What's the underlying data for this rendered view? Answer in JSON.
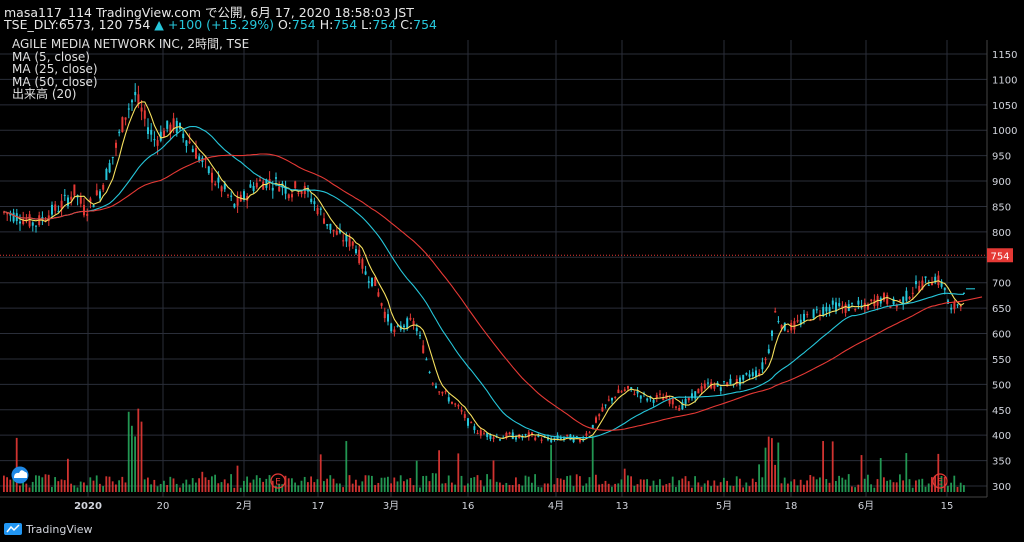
{
  "header": {
    "line1": "masa117_114 TradingView.com で公開, 6月 17, 2020 18:58:03 JST",
    "line2_prefix": "TSE_DLY:6573, 120 754",
    "change": "▲ +100 (+15.29%)",
    "o_label": " O:",
    "o_val": "754",
    "h_label": " H:",
    "h_val": "754",
    "l_label": " L:",
    "l_val": "754",
    "c_label": " C:",
    "c_val": "754"
  },
  "legend": {
    "title": "AGILE MEDIA NETWORK INC, 2時間, TSE",
    "ma5": "MA (5, close)",
    "ma25": "MA (25, close)",
    "ma50": "MA (50, close)",
    "volume": "出来高 (20)"
  },
  "brand": {
    "name": "TradingView"
  },
  "colors": {
    "background": "#000000",
    "up": "#e53935",
    "down": "#26c6da",
    "ma5": "#f6e05e",
    "ma25": "#26c6da",
    "ma50": "#e53935",
    "vol_up": "#e53935",
    "vol_down": "#26a65b",
    "grid": "#2a2e39"
  },
  "chart_data": {
    "type": "candlestick",
    "y_ticks": [
      1150,
      1100,
      1050,
      1000,
      950,
      900,
      850,
      800,
      750,
      700,
      650,
      600,
      550,
      500,
      450,
      400,
      350,
      300
    ],
    "ylim": [
      290,
      1160
    ],
    "x_ticks": [
      "2020",
      "20",
      "2月",
      "17",
      "3月",
      "16",
      "4月",
      "13",
      "5月",
      "18",
      "6月",
      "15"
    ],
    "last_price_label": "754",
    "last_price": 754,
    "earnings_markers": [
      "E",
      "E"
    ],
    "price_path_keypoints": [
      [
        0,
        840
      ],
      [
        20,
        830
      ],
      [
        35,
        815
      ],
      [
        45,
        830
      ],
      [
        60,
        850
      ],
      [
        75,
        880
      ],
      [
        85,
        840
      ],
      [
        100,
        880
      ],
      [
        115,
        960
      ],
      [
        125,
        1030
      ],
      [
        135,
        1070
      ],
      [
        145,
        1020
      ],
      [
        155,
        980
      ],
      [
        165,
        1000
      ],
      [
        175,
        1010
      ],
      [
        185,
        990
      ],
      [
        195,
        960
      ],
      [
        205,
        930
      ],
      [
        215,
        900
      ],
      [
        225,
        880
      ],
      [
        235,
        850
      ],
      [
        245,
        870
      ],
      [
        255,
        895
      ],
      [
        265,
        900
      ],
      [
        280,
        895
      ],
      [
        290,
        880
      ],
      [
        300,
        890
      ],
      [
        310,
        870
      ],
      [
        320,
        840
      ],
      [
        330,
        810
      ],
      [
        340,
        790
      ],
      [
        355,
        775
      ],
      [
        365,
        720
      ],
      [
        375,
        700
      ],
      [
        385,
        640
      ],
      [
        395,
        600
      ],
      [
        405,
        620
      ],
      [
        415,
        620
      ],
      [
        425,
        560
      ],
      [
        432,
        510
      ],
      [
        440,
        490
      ],
      [
        450,
        470
      ],
      [
        460,
        450
      ],
      [
        470,
        420
      ],
      [
        480,
        405
      ],
      [
        490,
        400
      ],
      [
        500,
        395
      ],
      [
        510,
        400
      ],
      [
        520,
        395
      ],
      [
        530,
        400
      ],
      [
        540,
        395
      ],
      [
        550,
        390
      ],
      [
        560,
        395
      ],
      [
        570,
        395
      ],
      [
        580,
        390
      ],
      [
        590,
        410
      ],
      [
        600,
        440
      ],
      [
        610,
        470
      ],
      [
        620,
        485
      ],
      [
        630,
        490
      ],
      [
        640,
        480
      ],
      [
        650,
        470
      ],
      [
        660,
        475
      ],
      [
        670,
        470
      ],
      [
        680,
        455
      ],
      [
        690,
        470
      ],
      [
        700,
        490
      ],
      [
        710,
        500
      ],
      [
        720,
        495
      ],
      [
        730,
        505
      ],
      [
        740,
        505
      ],
      [
        750,
        520
      ],
      [
        760,
        525
      ],
      [
        768,
        560
      ],
      [
        775,
        640
      ],
      [
        785,
        610
      ],
      [
        795,
        615
      ],
      [
        805,
        630
      ],
      [
        815,
        640
      ],
      [
        825,
        650
      ],
      [
        835,
        655
      ],
      [
        845,
        650
      ],
      [
        855,
        655
      ],
      [
        865,
        650
      ],
      [
        875,
        665
      ],
      [
        885,
        670
      ],
      [
        895,
        655
      ],
      [
        905,
        670
      ],
      [
        915,
        690
      ],
      [
        925,
        700
      ],
      [
        935,
        710
      ],
      [
        945,
        690
      ],
      [
        950,
        640
      ],
      [
        958,
        660
      ],
      [
        966,
        675
      ]
    ]
  }
}
